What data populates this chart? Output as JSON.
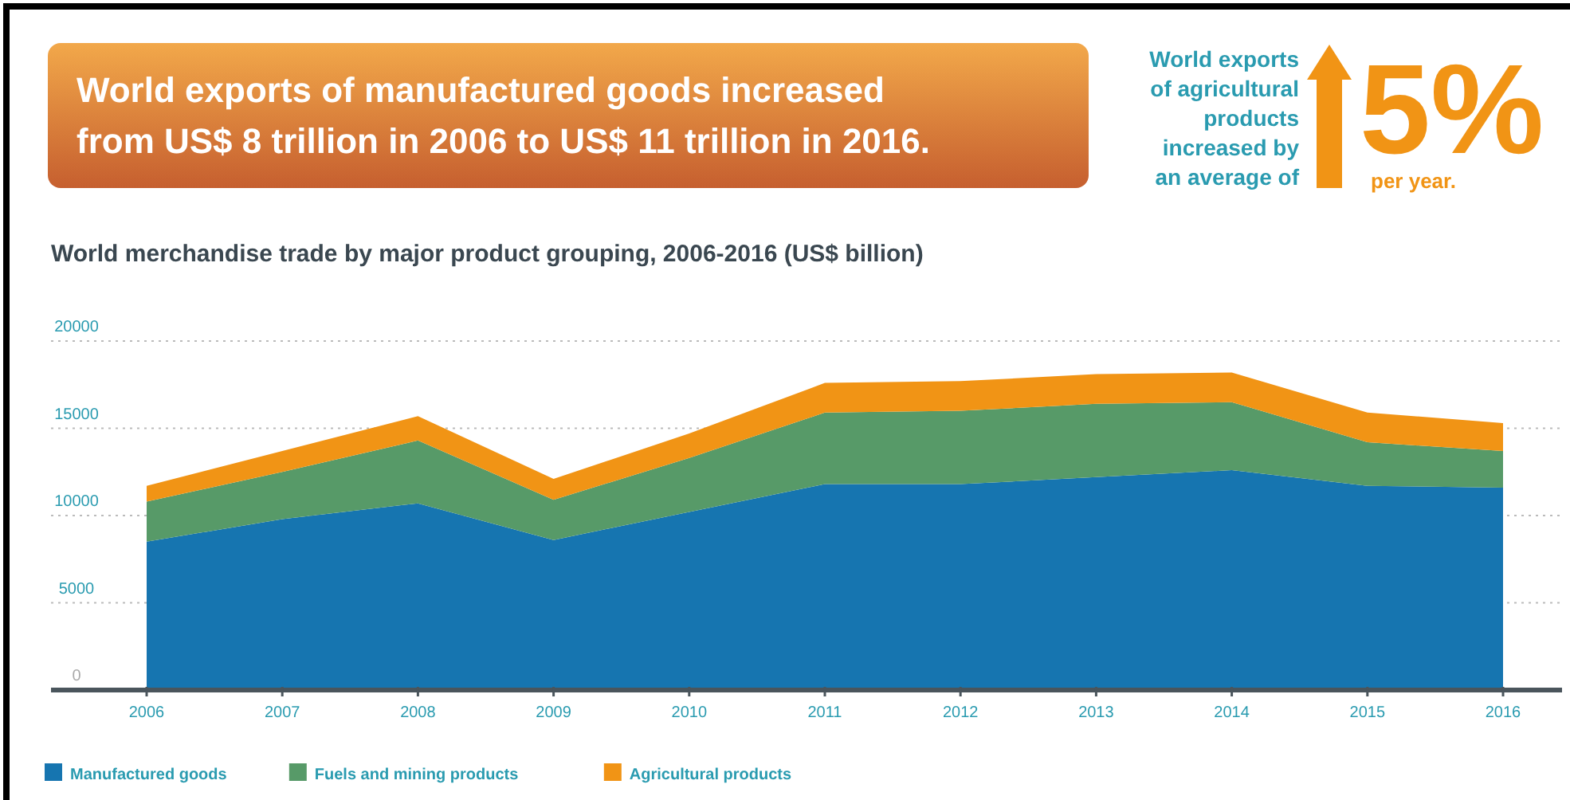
{
  "chart_data": {
    "type": "area",
    "stacked": true,
    "title": "World merchandise trade by major product grouping, 2006-2016 (US$ billion)",
    "annotations": [
      "World exports of manufactured goods increased\nfrom US$ 8 trillion in 2006 to US$ 11 trillion in 2016.",
      "World exports\nof agricultural\nproducts\nincreased by\nan average of",
      "5%",
      "per year."
    ],
    "categories": [
      "2006",
      "2007",
      "2008",
      "2009",
      "2010",
      "2011",
      "2012",
      "2013",
      "2014",
      "2015",
      "2016"
    ],
    "series": [
      {
        "name": "Manufactured goods",
        "color": "#1675b0",
        "values": [
          8500,
          9800,
          10700,
          8600,
          10200,
          11800,
          11800,
          12200,
          12600,
          11700,
          11600
        ]
      },
      {
        "name": "Fuels and mining products",
        "color": "#579a68",
        "values": [
          2300,
          2700,
          3600,
          2300,
          3100,
          4100,
          4200,
          4200,
          3900,
          2500,
          2100
        ]
      },
      {
        "name": "Agricultural products",
        "color": "#f19415",
        "values": [
          900,
          1200,
          1400,
          1200,
          1400,
          1700,
          1700,
          1700,
          1700,
          1700,
          1600
        ]
      }
    ],
    "ylim": [
      0,
      20000
    ],
    "yticks": [
      0,
      5000,
      10000,
      15000,
      20000
    ],
    "grid": "y",
    "legend": "bottom left"
  }
}
